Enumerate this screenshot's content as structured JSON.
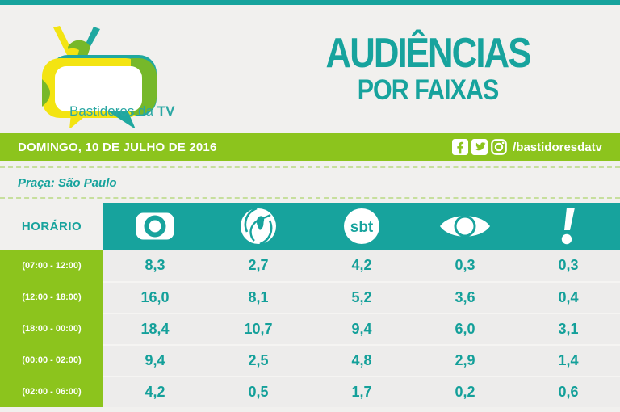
{
  "colors": {
    "teal": "#17a39d",
    "green": "#8cc41d",
    "background": "#f1f0ee",
    "cell_bg": "#edeceb"
  },
  "brand": {
    "logo_text_regular": "Bastidores da ",
    "logo_text_bold": "TV"
  },
  "title": {
    "line1": "AUDIÊNCIAS",
    "line2": "POR FAIXAS"
  },
  "date_bar": {
    "date": "DOMINGO, 10 DE JULHO DE 2016",
    "social_handle": "/bastidoresdatv"
  },
  "location": {
    "label": "Praça: São Paulo"
  },
  "table": {
    "time_header": "HORÁRIO",
    "networks": [
      "Globo",
      "Record",
      "SBT",
      "Band",
      "RedeTV!"
    ],
    "rows": [
      {
        "time": "(07:00 - 12:00)",
        "values": [
          "8,3",
          "2,7",
          "4,2",
          "0,3",
          "0,3"
        ]
      },
      {
        "time": "(12:00 - 18:00)",
        "values": [
          "16,0",
          "8,1",
          "5,2",
          "3,6",
          "0,4"
        ]
      },
      {
        "time": "(18:00 - 00:00)",
        "values": [
          "18,4",
          "10,7",
          "9,4",
          "6,0",
          "3,1"
        ]
      },
      {
        "time": "(00:00 - 02:00)",
        "values": [
          "9,4",
          "2,5",
          "4,8",
          "2,9",
          "1,4"
        ]
      },
      {
        "time": "(02:00 - 06:00)",
        "values": [
          "4,2",
          "0,5",
          "1,7",
          "0,2",
          "0,6"
        ]
      }
    ]
  },
  "chart_data": {
    "type": "table",
    "title": "AUDIÊNCIAS POR FAIXAS",
    "subtitle": "DOMINGO, 10 DE JULHO DE 2016",
    "location": "Praça: São Paulo",
    "columns": [
      "HORÁRIO",
      "Globo",
      "Record",
      "SBT",
      "Band",
      "RedeTV!"
    ],
    "rows": [
      [
        "(07:00 - 12:00)",
        8.3,
        2.7,
        4.2,
        0.3,
        0.3
      ],
      [
        "(12:00 - 18:00)",
        16.0,
        8.1,
        5.2,
        3.6,
        0.4
      ],
      [
        "(18:00 - 00:00)",
        18.4,
        10.7,
        9.4,
        6.0,
        3.1
      ],
      [
        "(00:00 - 02:00)",
        9.4,
        2.5,
        4.8,
        2.9,
        1.4
      ],
      [
        "(02:00 - 06:00)",
        4.2,
        0.5,
        1.7,
        0.2,
        0.6
      ]
    ]
  }
}
